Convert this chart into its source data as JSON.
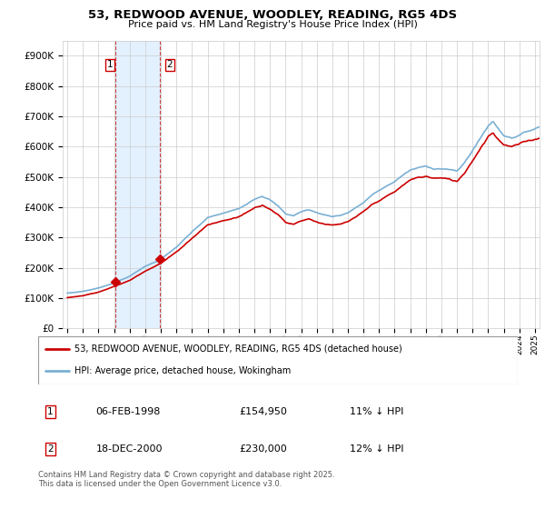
{
  "title": "53, REDWOOD AVENUE, WOODLEY, READING, RG5 4DS",
  "subtitle": "Price paid vs. HM Land Registry's House Price Index (HPI)",
  "ylim": [
    0,
    950000
  ],
  "yticks": [
    0,
    100000,
    200000,
    300000,
    400000,
    500000,
    600000,
    700000,
    800000,
    900000
  ],
  "legend_line1": "53, REDWOOD AVENUE, WOODLEY, READING, RG5 4DS (detached house)",
  "legend_line2": "HPI: Average price, detached house, Wokingham",
  "transaction1_date": "06-FEB-1998",
  "transaction1_price": "£154,950",
  "transaction1_hpi": "11% ↓ HPI",
  "transaction2_date": "18-DEC-2000",
  "transaction2_price": "£230,000",
  "transaction2_hpi": "12% ↓ HPI",
  "footer": "Contains HM Land Registry data © Crown copyright and database right 2025.\nThis data is licensed under the Open Government Licence v3.0.",
  "red_color": "#cc0000",
  "blue_color": "#7ab0d4",
  "shaded_color": "#ddeeff",
  "grid_color": "#cccccc",
  "background_color": "#ffffff",
  "transaction1_x": 1998.09,
  "transaction1_y": 154950,
  "transaction2_x": 2000.96,
  "transaction2_y": 230000,
  "shaded_x1": 1998.09,
  "shaded_x2": 2000.96,
  "vline1_x": 1998.09,
  "vline2_x": 2000.96,
  "xlim_left": 1994.7,
  "xlim_right": 2025.3
}
